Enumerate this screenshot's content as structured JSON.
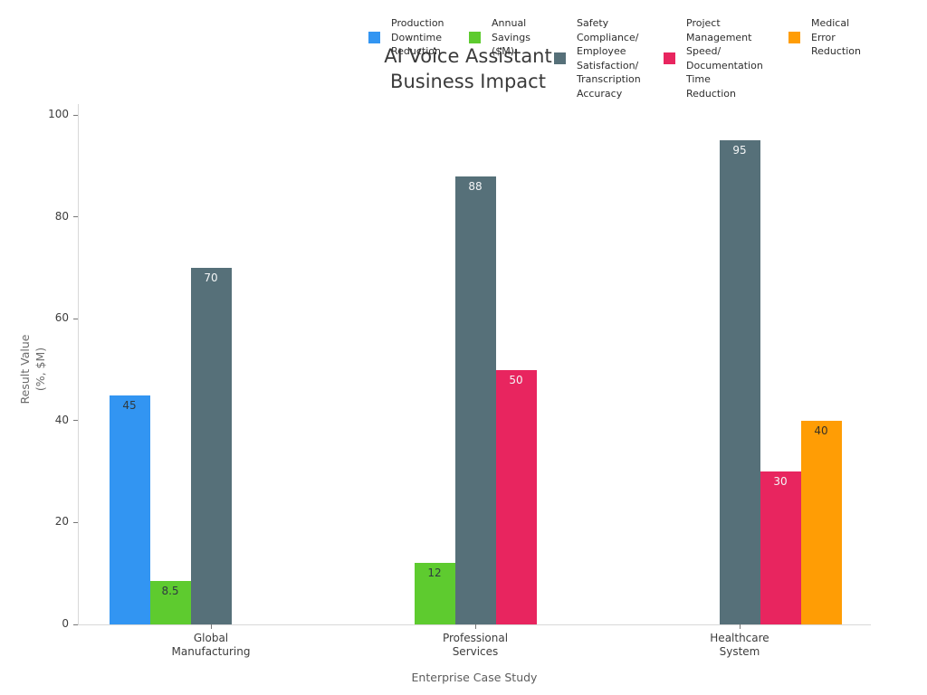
{
  "title": "AI Voice Assistant\nBusiness Impact",
  "axes": {
    "xlabel": "Enterprise Case Study",
    "ylabel": "Result Value\n(%, $M)"
  },
  "chart_data": {
    "type": "bar",
    "title": "AI Voice Assistant Business Impact",
    "xlabel": "Enterprise Case Study",
    "ylabel": "Result Value (%, $M)",
    "ylim": [
      0,
      100
    ],
    "yticks": [
      0,
      20,
      40,
      60,
      80,
      100
    ],
    "grid": false,
    "legend_position": "top",
    "categories": [
      "Global\nManufacturing",
      "Professional\nServices",
      "Healthcare\nSystem"
    ],
    "series": [
      {
        "name": "Production Downtime Reduction",
        "legend_label": "Production\nDowntime\nReduction",
        "color": "#3295f2",
        "label_color": "#2f3a40",
        "values": [
          45,
          null,
          null
        ]
      },
      {
        "name": "Annual Savings ($M)",
        "legend_label": "Annual\nSavings\n($M)",
        "color": "#5ecb2f",
        "label_color": "#2f3a40",
        "values": [
          8.5,
          12,
          null
        ]
      },
      {
        "name": "Safety Compliance/Employee Satisfaction/Transcription Accuracy",
        "legend_label": "Safety\nCompliance/\nEmployee\nSatisfaction/\nTranscription\nAccuracy",
        "color": "#567079",
        "label_color": "#f4f6f7",
        "values": [
          70,
          88,
          95
        ]
      },
      {
        "name": "Project Management Speed/Documentation Time Reduction",
        "legend_label": "Project\nManagement\nSpeed/\nDocumentation\nTime\nReduction",
        "color": "#e8255f",
        "label_color": "#f4f6f7",
        "values": [
          null,
          50,
          30
        ]
      },
      {
        "name": "Medical Error Reduction",
        "legend_label": "Medical\nError\nReduction",
        "color": "#ff9d05",
        "label_color": "#3a3224",
        "values": [
          null,
          null,
          40
        ]
      }
    ]
  }
}
